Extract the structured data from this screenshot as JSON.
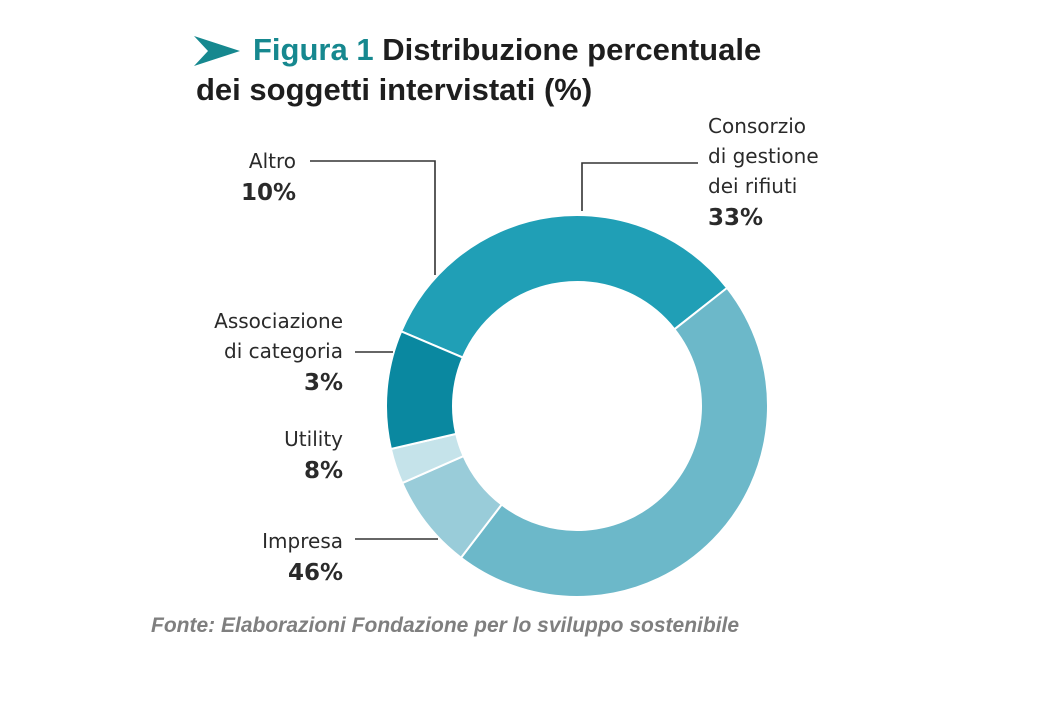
{
  "title": {
    "figure_label": "Figura 1",
    "text_line1": "Distribuzione percentuale",
    "text_line2": "dei soggetti intervistati (%)"
  },
  "chart_data": {
    "type": "pie",
    "variant": "donut",
    "title": "Figura 1 Distribuzione percentuale dei soggetti intervistati (%)",
    "slices": [
      {
        "label": [
          "Consorzio",
          "di gestione",
          "dei rifiuti"
        ],
        "value": 33,
        "display": "33%",
        "color": "#209fb6"
      },
      {
        "label": [
          "Impresa"
        ],
        "value": 46,
        "display": "46%",
        "color": "#6cb8c9"
      },
      {
        "label": [
          "Utility"
        ],
        "value": 8,
        "display": "8%",
        "color": "#99ccd9"
      },
      {
        "label": [
          "Associazione",
          "di categoria"
        ],
        "value": 3,
        "display": "3%",
        "color": "#c5e3ea"
      },
      {
        "label": [
          "Altro"
        ],
        "value": 10,
        "display": "10%",
        "color": "#0a88a0"
      }
    ]
  },
  "source": "Fonte: Elaborazioni Fondazione per lo sviluppo sostenibile"
}
